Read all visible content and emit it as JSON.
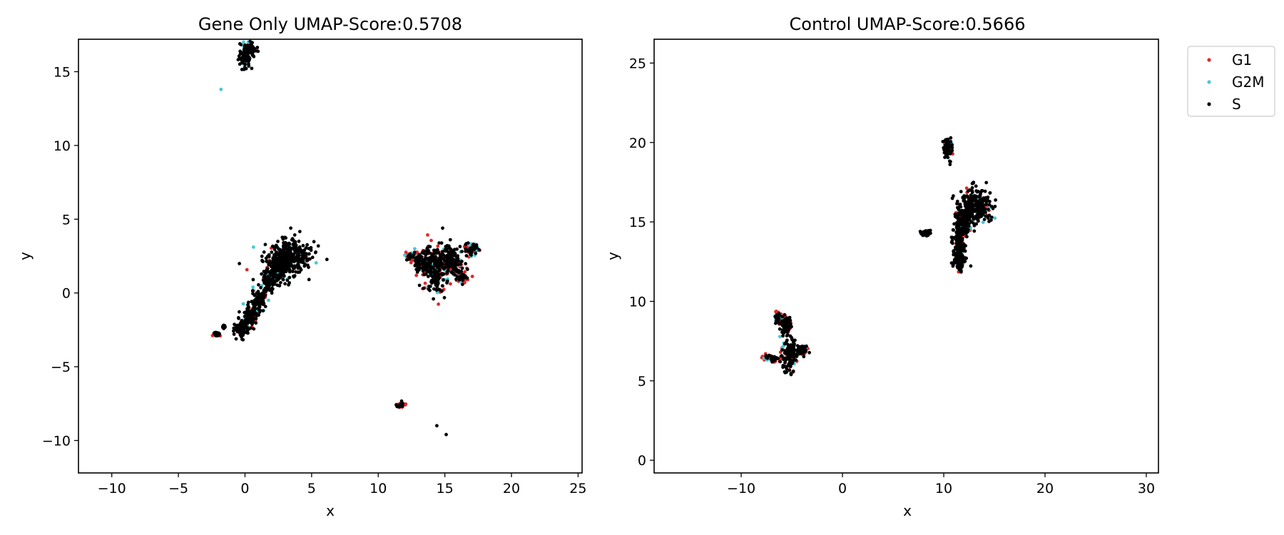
{
  "chart_data": [
    {
      "type": "scatter",
      "title": "Gene Only UMAP-Score:0.5708",
      "xlabel": "x",
      "ylabel": "y",
      "xlim": [
        -12.5,
        25.3
      ],
      "ylim": [
        -12.2,
        17.2
      ],
      "xticks": [
        -10,
        -5,
        0,
        5,
        10,
        15,
        20,
        25
      ],
      "yticks": [
        -10,
        -5,
        0,
        5,
        10,
        15
      ],
      "grid": false,
      "clusters": [
        {
          "name": "top-small",
          "ellipses": [
            [
              0.0,
              16.0,
              0.5,
              0.7
            ],
            [
              0.4,
              16.6,
              0.4,
              0.4
            ]
          ],
          "mix": {
            "S": 0.82,
            "G1": 0.08,
            "G2M": 0.1
          }
        },
        {
          "name": "main-head",
          "ellipses": [
            [
              3.2,
              2.5,
              1.8,
              1.2
            ],
            [
              2.6,
              1.8,
              1.0,
              0.9
            ]
          ],
          "mix": {
            "S": 0.86,
            "G1": 0.08,
            "G2M": 0.06
          }
        },
        {
          "name": "main-stalk",
          "ellipses": [
            [
              1.8,
              0.8,
              0.5,
              0.8
            ],
            [
              1.0,
              -0.5,
              0.5,
              0.8
            ],
            [
              0.4,
              -1.6,
              0.5,
              0.7
            ],
            [
              -0.2,
              -2.4,
              0.5,
              0.6
            ]
          ],
          "mix": {
            "S": 0.82,
            "G1": 0.1,
            "G2M": 0.08
          }
        },
        {
          "name": "right-cluster-core",
          "ellipses": [
            [
              14.3,
              1.5,
              0.8,
              1.7
            ],
            [
              13.5,
              2.0,
              0.8,
              0.8
            ],
            [
              15.6,
              2.1,
              0.8,
              1.2
            ]
          ],
          "mix": {
            "S": 0.66,
            "G1": 0.24,
            "G2M": 0.1
          }
        },
        {
          "name": "right-cluster-edge",
          "ellipses": [
            [
              17.0,
              3.0,
              0.5,
              0.4
            ],
            [
              16.3,
              1.0,
              0.4,
              0.3
            ],
            [
              12.5,
              2.5,
              0.4,
              0.3
            ]
          ],
          "mix": {
            "S": 0.25,
            "G1": 0.5,
            "G2M": 0.25
          }
        },
        {
          "name": "small-bottom",
          "ellipses": [
            [
              11.7,
              -7.6,
              0.3,
              0.15
            ]
          ],
          "mix": {
            "S": 0.4,
            "G1": 0.6,
            "G2M": 0.0
          }
        },
        {
          "name": "tail-left",
          "ellipses": [
            [
              -2.1,
              -2.8,
              0.2,
              0.1
            ],
            [
              -1.6,
              -2.3,
              0.1,
              0.1
            ]
          ],
          "mix": {
            "S": 0.9,
            "G1": 0.1,
            "G2M": 0.0
          }
        }
      ],
      "isolated_points": [
        {
          "x": -1.8,
          "y": 13.8,
          "class": "G2M"
        },
        {
          "x": 14.4,
          "y": -9.0,
          "class": "S"
        },
        {
          "x": 15.1,
          "y": -9.6,
          "class": "S"
        }
      ]
    },
    {
      "type": "scatter",
      "title": "Control UMAP-Score:0.5666",
      "xlabel": "x",
      "ylabel": "y",
      "xlim": [
        -18.6,
        31.2
      ],
      "ylim": [
        -0.8,
        26.5
      ],
      "xticks": [
        -10,
        0,
        10,
        20,
        30
      ],
      "yticks": [
        0,
        5,
        10,
        15,
        20,
        25
      ],
      "grid": false,
      "clusters": [
        {
          "name": "top-small",
          "ellipses": [
            [
              10.4,
              19.7,
              0.4,
              0.7
            ]
          ],
          "mix": {
            "S": 0.85,
            "G1": 0.05,
            "G2M": 0.1
          }
        },
        {
          "name": "main-head",
          "ellipses": [
            [
              13.2,
              16.0,
              1.6,
              1.1
            ],
            [
              12.0,
              15.2,
              0.9,
              0.9
            ]
          ],
          "mix": {
            "S": 0.85,
            "G1": 0.08,
            "G2M": 0.07
          }
        },
        {
          "name": "main-stalk",
          "ellipses": [
            [
              11.5,
              13.6,
              0.6,
              1.2
            ],
            [
              11.6,
              12.5,
              0.5,
              0.6
            ]
          ],
          "mix": {
            "S": 0.85,
            "G1": 0.08,
            "G2M": 0.07
          }
        },
        {
          "name": "small-mid",
          "ellipses": [
            [
              8.2,
              14.3,
              0.5,
              0.15
            ]
          ],
          "mix": {
            "S": 0.7,
            "G1": 0.1,
            "G2M": 0.2
          }
        },
        {
          "name": "left-cluster-body",
          "ellipses": [
            [
              -5.3,
              6.6,
              0.8,
              1.0
            ],
            [
              -5.6,
              8.5,
              0.5,
              0.7
            ],
            [
              -4.0,
              6.9,
              0.5,
              0.3
            ]
          ],
          "mix": {
            "S": 0.68,
            "G1": 0.2,
            "G2M": 0.12
          }
        },
        {
          "name": "left-cluster-edge",
          "ellipses": [
            [
              -6.4,
              9.0,
              0.3,
              0.4
            ],
            [
              -7.1,
              6.4,
              0.8,
              0.2
            ]
          ],
          "mix": {
            "S": 0.35,
            "G1": 0.45,
            "G2M": 0.2
          }
        }
      ],
      "isolated_points": []
    }
  ],
  "legend": {
    "placement": "outside-top-right",
    "entries": [
      {
        "label": "G1",
        "color": "#e0282a"
      },
      {
        "label": "G2M",
        "color": "#47c8d6"
      },
      {
        "label": "S",
        "color": "#000000"
      }
    ]
  },
  "colors": {
    "G1": "#e0282a",
    "G2M": "#47c8d6",
    "S": "#000000"
  }
}
